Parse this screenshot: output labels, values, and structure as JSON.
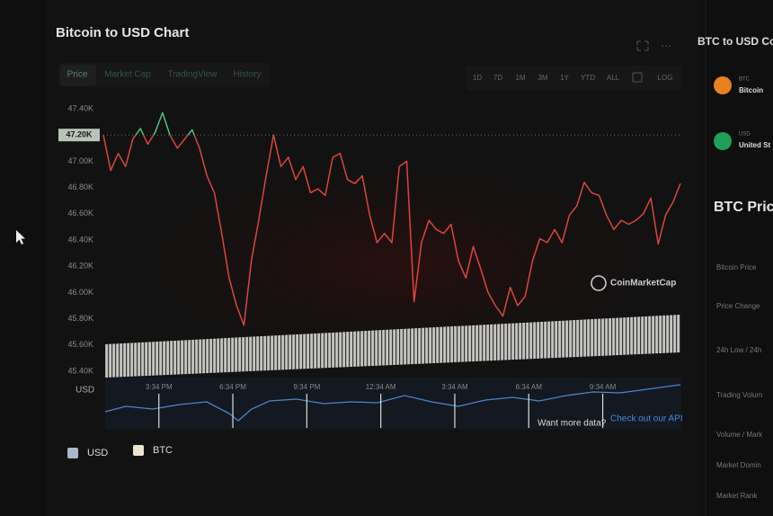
{
  "chart_data": {
    "type": "line",
    "title": "Bitcoin to USD Chart",
    "x": [
      0,
      1,
      2,
      3,
      4,
      5,
      6,
      7,
      8,
      9,
      10,
      11,
      12,
      13,
      14,
      15,
      16,
      17,
      18,
      19,
      20,
      21,
      22,
      23,
      24,
      25,
      26,
      27,
      28,
      29,
      30,
      31,
      32,
      33,
      34,
      35,
      36,
      37,
      38,
      39,
      40,
      41,
      42,
      43,
      44,
      45,
      46,
      47,
      48,
      49,
      50,
      51,
      52,
      53,
      54,
      55,
      56,
      57,
      58,
      59,
      60,
      61,
      62,
      63,
      64,
      65,
      66,
      67,
      68,
      69,
      70,
      71,
      72,
      73,
      74,
      75,
      76,
      77,
      78
    ],
    "series": [
      {
        "values": [
          47200,
          46930,
          47060,
          46960,
          47170,
          47250,
          47130,
          47220,
          47370,
          47200,
          47100,
          47170,
          47240,
          47100,
          46890,
          46760,
          46450,
          46110,
          45900,
          45750,
          46240,
          46550,
          46890,
          47200,
          46960,
          47030,
          46860,
          46960,
          46760,
          46790,
          46740,
          47030,
          47060,
          46860,
          46830,
          46890,
          46590,
          46380,
          46450,
          46380,
          46960,
          47000,
          45930,
          46380,
          46550,
          46480,
          46450,
          46520,
          46240,
          46110,
          46350,
          46180,
          46000,
          45900,
          45820,
          46040,
          45900,
          45970,
          46240,
          46410,
          46380,
          46480,
          46380,
          46590,
          46660,
          46840,
          46760,
          46740,
          46590,
          46480,
          46550,
          46520,
          46550,
          46600,
          46720,
          46370,
          46590,
          46690,
          46830
        ],
        "color_above": "#4fbf7f",
        "color_below": "#d9463f"
      }
    ],
    "reference": {
      "value": 47200,
      "label": "47.20K"
    },
    "xlim": [
      0,
      78
    ],
    "xticks": [
      {
        "value": 7.5,
        "label": "3:34 PM"
      },
      {
        "value": 17.5,
        "label": "6:34 PM"
      },
      {
        "value": 27.5,
        "label": "9:34 PM"
      },
      {
        "value": 37.5,
        "label": "12:34 AM"
      },
      {
        "value": 47.5,
        "label": "3:34 AM"
      },
      {
        "value": 57.5,
        "label": "6:34 AM"
      },
      {
        "value": 67.5,
        "label": "9:34 AM"
      }
    ],
    "ylim": [
      45400,
      47400
    ],
    "yticks": [
      {
        "value": 45400,
        "label": "45.40K"
      },
      {
        "value": 45600,
        "label": "45.60K"
      },
      {
        "value": 45800,
        "label": "45.80K"
      },
      {
        "value": 46000,
        "label": "46.00K"
      },
      {
        "value": 46200,
        "label": "46.20K"
      },
      {
        "value": 46400,
        "label": "46.40K"
      },
      {
        "value": 46600,
        "label": "46.60K"
      },
      {
        "value": 46800,
        "label": "46.80K"
      },
      {
        "value": 47000,
        "label": "47.00K"
      },
      {
        "value": 47400,
        "label": "47.40K"
      }
    ],
    "grid": false,
    "watermark": "CoinMarketCap",
    "navigator_label": "USD",
    "legend": [
      {
        "name": "USD",
        "color": "#a9b7cc"
      },
      {
        "name": "BTC",
        "color": "#ebe5cf"
      }
    ]
  },
  "tabs": [
    "Price",
    "Market Cap",
    "TradingView",
    "History"
  ],
  "ranges": [
    "1D",
    "7D",
    "1M",
    "3M",
    "1Y",
    "YTD",
    "ALL",
    "LOG"
  ],
  "footer": {
    "prompt": "Want more data?",
    "link": "Check out our API"
  },
  "sidebar": {
    "title": "BTC to USD Co",
    "coins": [
      {
        "symbol": "BTC",
        "name": "Bitcoin"
      },
      {
        "symbol": "USD",
        "name": "United St"
      }
    ],
    "heading": "BTC Pric",
    "rows": [
      "Bitcoin Price",
      "Price Change",
      "24h Low / 24h",
      "Trading Volum",
      "Volume / Mark",
      "Market Domin",
      "Market Rank"
    ]
  }
}
